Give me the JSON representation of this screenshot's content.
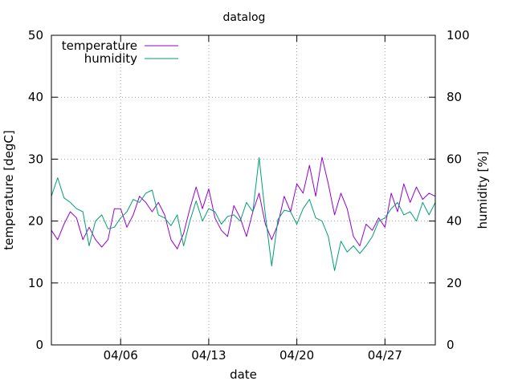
{
  "chart_data": {
    "type": "line",
    "title": "datalog",
    "xlabel": "date",
    "ylabel": "temperature [degC]",
    "y2label": "humidity [%]",
    "x_range": [
      "03/31 12:00",
      "05/01 00:00"
    ],
    "x_ticks": [
      "04/06",
      "04/13",
      "04/20",
      "04/27"
    ],
    "y_range": [
      0,
      50
    ],
    "y_ticks": [
      "0",
      "10",
      "20",
      "30",
      "40",
      "50"
    ],
    "y2_range": [
      0,
      100
    ],
    "y2_ticks": [
      "0",
      "20",
      "40",
      "60",
      "80",
      "100"
    ],
    "grid": true,
    "legend_position": "top-left",
    "series": [
      {
        "name": "temperature",
        "axis": "left",
        "color": "#9400d3",
        "points": [
          [
            "03/31 12:00",
            18.5
          ],
          [
            "04/01 00:00",
            17.0
          ],
          [
            "04/01 12:00",
            19.5
          ],
          [
            "04/02 00:00",
            21.5
          ],
          [
            "04/02 12:00",
            20.5
          ],
          [
            "04/03 00:00",
            17.0
          ],
          [
            "04/03 12:00",
            19.0
          ],
          [
            "04/04 00:00",
            17.0
          ],
          [
            "04/04 12:00",
            15.8
          ],
          [
            "04/05 00:00",
            17.0
          ],
          [
            "04/05 12:00",
            22.0
          ],
          [
            "04/06 00:00",
            22.0
          ],
          [
            "04/06 12:00",
            19.0
          ],
          [
            "04/07 00:00",
            21.0
          ],
          [
            "04/07 12:00",
            24.0
          ],
          [
            "04/08 00:00",
            23.0
          ],
          [
            "04/08 12:00",
            21.5
          ],
          [
            "04/09 00:00",
            23.0
          ],
          [
            "04/09 12:00",
            21.0
          ],
          [
            "04/10 00:00",
            17.0
          ],
          [
            "04/10 12:00",
            15.5
          ],
          [
            "04/11 00:00",
            18.0
          ],
          [
            "04/11 12:00",
            22.0
          ],
          [
            "04/12 00:00",
            25.5
          ],
          [
            "04/12 12:00",
            22.0
          ],
          [
            "04/13 00:00",
            25.2
          ],
          [
            "04/13 12:00",
            20.5
          ],
          [
            "04/14 00:00",
            18.5
          ],
          [
            "04/14 12:00",
            17.5
          ],
          [
            "04/15 00:00",
            22.5
          ],
          [
            "04/15 12:00",
            20.5
          ],
          [
            "04/16 00:00",
            17.5
          ],
          [
            "04/16 12:00",
            21.5
          ],
          [
            "04/17 00:00",
            24.5
          ],
          [
            "04/17 12:00",
            19.5
          ],
          [
            "04/18 00:00",
            17.0
          ],
          [
            "04/18 12:00",
            19.5
          ],
          [
            "04/19 00:00",
            24.0
          ],
          [
            "04/19 12:00",
            21.5
          ],
          [
            "04/20 00:00",
            26.0
          ],
          [
            "04/20 12:00",
            24.5
          ],
          [
            "04/21 00:00",
            29.0
          ],
          [
            "04/21 12:00",
            24.0
          ],
          [
            "04/22 00:00",
            30.3
          ],
          [
            "04/22 12:00",
            26.0
          ],
          [
            "04/23 00:00",
            21.0
          ],
          [
            "04/23 12:00",
            24.5
          ],
          [
            "04/24 00:00",
            22.0
          ],
          [
            "04/24 12:00",
            17.5
          ],
          [
            "04/25 00:00",
            16.0
          ],
          [
            "04/25 12:00",
            19.5
          ],
          [
            "04/26 00:00",
            18.5
          ],
          [
            "04/26 12:00",
            20.5
          ],
          [
            "04/27 00:00",
            19.0
          ],
          [
            "04/27 12:00",
            24.5
          ],
          [
            "04/28 00:00",
            21.5
          ],
          [
            "04/28 12:00",
            26.0
          ],
          [
            "04/29 00:00",
            23.0
          ],
          [
            "04/29 12:00",
            25.5
          ],
          [
            "04/30 00:00",
            23.5
          ],
          [
            "04/30 12:00",
            24.5
          ],
          [
            "05/01 00:00",
            24.0
          ]
        ]
      },
      {
        "name": "humidity",
        "axis": "right",
        "color": "#009e73",
        "points": [
          [
            "03/31 12:00",
            48.0
          ],
          [
            "04/01 00:00",
            54.0
          ],
          [
            "04/01 12:00",
            47.5
          ],
          [
            "04/02 00:00",
            46.0
          ],
          [
            "04/02 12:00",
            44.0
          ],
          [
            "04/03 00:00",
            43.0
          ],
          [
            "04/03 12:00",
            32.0
          ],
          [
            "04/04 00:00",
            40.0
          ],
          [
            "04/04 12:00",
            42.0
          ],
          [
            "04/05 00:00",
            37.5
          ],
          [
            "04/05 12:00",
            38.0
          ],
          [
            "04/06 00:00",
            41.0
          ],
          [
            "04/06 12:00",
            43.0
          ],
          [
            "04/07 00:00",
            47.0
          ],
          [
            "04/07 12:00",
            46.0
          ],
          [
            "04/08 00:00",
            49.0
          ],
          [
            "04/08 12:00",
            50.0
          ],
          [
            "04/09 00:00",
            42.0
          ],
          [
            "04/09 12:00",
            41.0
          ],
          [
            "04/10 00:00",
            38.5
          ],
          [
            "04/10 12:00",
            42.0
          ],
          [
            "04/11 00:00",
            32.0
          ],
          [
            "04/11 12:00",
            40.0
          ],
          [
            "04/12 00:00",
            46.5
          ],
          [
            "04/12 12:00",
            40.0
          ],
          [
            "04/13 00:00",
            44.0
          ],
          [
            "04/13 12:00",
            43.0
          ],
          [
            "04/14 00:00",
            39.0
          ],
          [
            "04/14 12:00",
            41.5
          ],
          [
            "04/15 00:00",
            42.0
          ],
          [
            "04/15 12:00",
            40.0
          ],
          [
            "04/16 00:00",
            46.0
          ],
          [
            "04/16 12:00",
            43.0
          ],
          [
            "04/17 00:00",
            60.5
          ],
          [
            "04/17 12:00",
            42.0
          ],
          [
            "04/18 00:00",
            25.5
          ],
          [
            "04/18 12:00",
            40.5
          ],
          [
            "04/19 00:00",
            43.5
          ],
          [
            "04/19 12:00",
            43.0
          ],
          [
            "04/20 00:00",
            39.0
          ],
          [
            "04/20 12:00",
            44.0
          ],
          [
            "04/21 00:00",
            47.0
          ],
          [
            "04/21 12:00",
            41.0
          ],
          [
            "04/22 00:00",
            40.0
          ],
          [
            "04/22 12:00",
            35.0
          ],
          [
            "04/23 00:00",
            24.0
          ],
          [
            "04/23 12:00",
            33.5
          ],
          [
            "04/24 00:00",
            30.0
          ],
          [
            "04/24 12:00",
            32.0
          ],
          [
            "04/25 00:00",
            29.5
          ],
          [
            "04/25 12:00",
            32.0
          ],
          [
            "04/26 00:00",
            35.0
          ],
          [
            "04/26 12:00",
            40.0
          ],
          [
            "04/27 00:00",
            41.0
          ],
          [
            "04/27 12:00",
            44.0
          ],
          [
            "04/28 00:00",
            46.0
          ],
          [
            "04/28 12:00",
            42.0
          ],
          [
            "04/29 00:00",
            43.0
          ],
          [
            "04/29 12:00",
            40.0
          ],
          [
            "04/30 00:00",
            46.0
          ],
          [
            "04/30 12:00",
            42.0
          ],
          [
            "05/01 00:00",
            46.0
          ]
        ]
      }
    ]
  }
}
